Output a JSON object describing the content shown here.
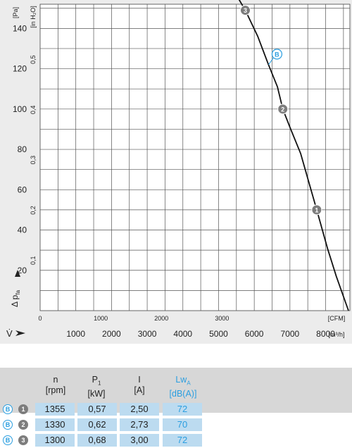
{
  "chart_data": {
    "type": "line",
    "y_left_unit": "[Pa]",
    "y_right_unit": "[in H₂O]",
    "y_axis_symbol": "Δ p",
    "y_axis_subscript": "fa",
    "x_top_unit": "[CFM]",
    "x_bottom_unit": "[m³/h]",
    "x_axis_symbol": "V̇",
    "y_pa_ticks": [
      20,
      40,
      60,
      80,
      100,
      120,
      140
    ],
    "y_inh2o_ticks": [
      "0,1",
      "0,2",
      "0,3",
      "0,4",
      "0,5"
    ],
    "x_cfm_ticks": [
      "0",
      "1000",
      "2000",
      "3000"
    ],
    "x_m3h_ticks": [
      "1000",
      "2000",
      "3000",
      "4000",
      "5000",
      "6000",
      "7000",
      "8000"
    ],
    "ylim_pa": [
      0,
      152
    ],
    "xlim_m3h": [
      0,
      8680
    ],
    "curve": {
      "x_m3h": [
        5450,
        5750,
        6100,
        6400,
        6650,
        6800,
        7000,
        7300,
        7750,
        8050,
        8300,
        8640
      ],
      "y_pa": [
        158,
        149,
        136,
        122,
        111,
        100,
        91,
        78,
        50,
        31,
        17,
        0
      ]
    },
    "points": [
      {
        "label": "3",
        "x_m3h": 5750,
        "y_pa": 149
      },
      {
        "label": "2",
        "x_m3h": 6800,
        "y_pa": 100
      },
      {
        "label": "1",
        "x_m3h": 7750,
        "y_pa": 50
      }
    ],
    "annotation": {
      "label": "B",
      "x_m3h": 6400,
      "y_pa": 122
    }
  },
  "table": {
    "headers": [
      {
        "main": "n",
        "sub": "",
        "unit": "[rpm]",
        "accent": false
      },
      {
        "main": "P",
        "sub": "1",
        "unit": "[kW]",
        "accent": false
      },
      {
        "main": "I",
        "sub": "",
        "unit": "[A]",
        "accent": false
      },
      {
        "main": "Lw",
        "sub": "A",
        "unit": "[dB(A)]",
        "accent": true
      }
    ],
    "rows": [
      {
        "b": "B",
        "point": "1",
        "n": "1355",
        "p1": "0,57",
        "i": "2,50",
        "lwa": "72"
      },
      {
        "b": "B",
        "point": "2",
        "n": "1330",
        "p1": "0,62",
        "i": "2,73",
        "lwa": "70"
      },
      {
        "b": "B",
        "point": "3",
        "n": "1300",
        "p1": "0,68",
        "i": "3,00",
        "lwa": "72"
      }
    ]
  },
  "colors": {
    "curve": "#111111",
    "accent": "#2a9ee0",
    "point": "#7d7d7d",
    "cell": "#bcdbf0"
  }
}
